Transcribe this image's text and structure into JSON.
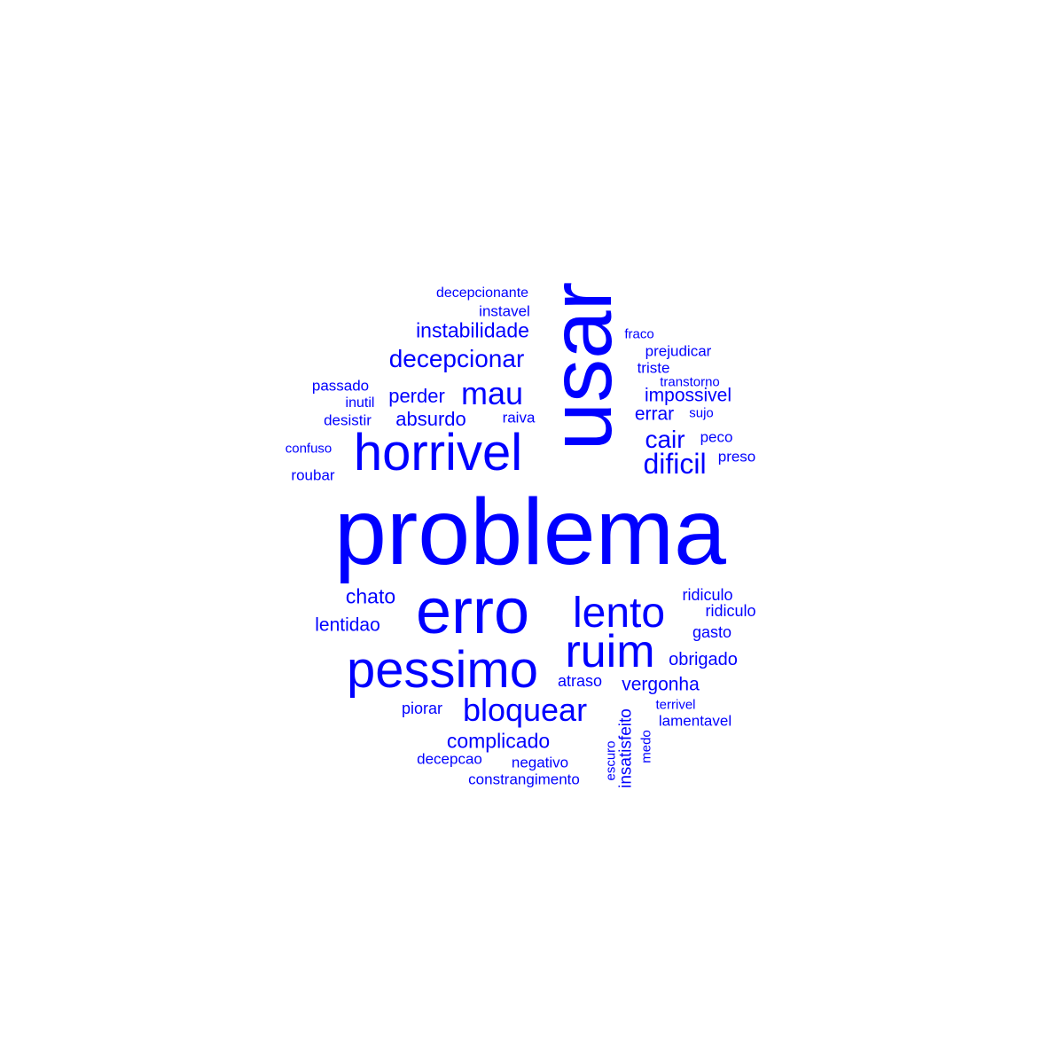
{
  "color": "#0000ff",
  "words": [
    {
      "text": "problema",
      "weight": 100,
      "orientation": "horizontal"
    },
    {
      "text": "usar",
      "weight": 80,
      "orientation": "vertical"
    },
    {
      "text": "erro",
      "weight": 72,
      "orientation": "horizontal"
    },
    {
      "text": "horrivel",
      "weight": 60,
      "orientation": "horizontal"
    },
    {
      "text": "pessimo",
      "weight": 58,
      "orientation": "horizontal"
    },
    {
      "text": "ruim",
      "weight": 54,
      "orientation": "horizontal"
    },
    {
      "text": "lento",
      "weight": 50,
      "orientation": "horizontal"
    },
    {
      "text": "mau",
      "weight": 38,
      "orientation": "horizontal"
    },
    {
      "text": "bloquear",
      "weight": 38,
      "orientation": "horizontal"
    },
    {
      "text": "decepcionar",
      "weight": 30,
      "orientation": "horizontal"
    },
    {
      "text": "dificil",
      "weight": 30,
      "orientation": "horizontal"
    },
    {
      "text": "cair",
      "weight": 28,
      "orientation": "horizontal"
    },
    {
      "text": "instabilidade",
      "weight": 24,
      "orientation": "horizontal"
    },
    {
      "text": "chato",
      "weight": 24,
      "orientation": "horizontal"
    },
    {
      "text": "complicado",
      "weight": 24,
      "orientation": "horizontal"
    },
    {
      "text": "perder",
      "weight": 23,
      "orientation": "horizontal"
    },
    {
      "text": "absurdo",
      "weight": 22,
      "orientation": "horizontal"
    },
    {
      "text": "impossivel",
      "weight": 22,
      "orientation": "horizontal"
    },
    {
      "text": "errar",
      "weight": 22,
      "orientation": "horizontal"
    },
    {
      "text": "vergonha",
      "weight": 22,
      "orientation": "horizontal"
    },
    {
      "text": "lentidao",
      "weight": 22,
      "orientation": "horizontal"
    },
    {
      "text": "obrigado",
      "weight": 20,
      "orientation": "horizontal"
    },
    {
      "text": "gasto",
      "weight": 19,
      "orientation": "horizontal"
    },
    {
      "text": "ridiculo",
      "weight": 19,
      "orientation": "horizontal"
    },
    {
      "text": "ridiculo",
      "weight": 19,
      "orientation": "horizontal"
    },
    {
      "text": "insatisfeito",
      "weight": 19,
      "orientation": "vertical"
    },
    {
      "text": "atraso",
      "weight": 18,
      "orientation": "horizontal"
    },
    {
      "text": "piorar",
      "weight": 18,
      "orientation": "horizontal"
    },
    {
      "text": "raiva",
      "weight": 18,
      "orientation": "horizontal"
    },
    {
      "text": "negativo",
      "weight": 18,
      "orientation": "horizontal"
    },
    {
      "text": "decepcao",
      "weight": 18,
      "orientation": "horizontal"
    },
    {
      "text": "lamentavel",
      "weight": 18,
      "orientation": "horizontal"
    },
    {
      "text": "instavel",
      "weight": 17,
      "orientation": "horizontal"
    },
    {
      "text": "desistir",
      "weight": 17,
      "orientation": "horizontal"
    },
    {
      "text": "passado",
      "weight": 17,
      "orientation": "horizontal"
    },
    {
      "text": "roubar",
      "weight": 17,
      "orientation": "horizontal"
    },
    {
      "text": "prejudicar",
      "weight": 17,
      "orientation": "horizontal"
    },
    {
      "text": "triste",
      "weight": 17,
      "orientation": "horizontal"
    },
    {
      "text": "peco",
      "weight": 17,
      "orientation": "horizontal"
    },
    {
      "text": "preso",
      "weight": 17,
      "orientation": "horizontal"
    },
    {
      "text": "constrangimento",
      "weight": 17,
      "orientation": "horizontal"
    },
    {
      "text": "inutil",
      "weight": 16,
      "orientation": "horizontal"
    },
    {
      "text": "decepcionante",
      "weight": 16,
      "orientation": "horizontal"
    },
    {
      "text": "terrivel",
      "weight": 16,
      "orientation": "horizontal"
    },
    {
      "text": "transtorno",
      "weight": 16,
      "orientation": "horizontal"
    },
    {
      "text": "confuso",
      "weight": 16,
      "orientation": "horizontal"
    },
    {
      "text": "fraco",
      "weight": 15,
      "orientation": "horizontal"
    },
    {
      "text": "sujo",
      "weight": 15,
      "orientation": "horizontal"
    },
    {
      "text": "escuro",
      "weight": 15,
      "orientation": "vertical"
    },
    {
      "text": "medo",
      "weight": 15,
      "orientation": "vertical"
    }
  ]
}
